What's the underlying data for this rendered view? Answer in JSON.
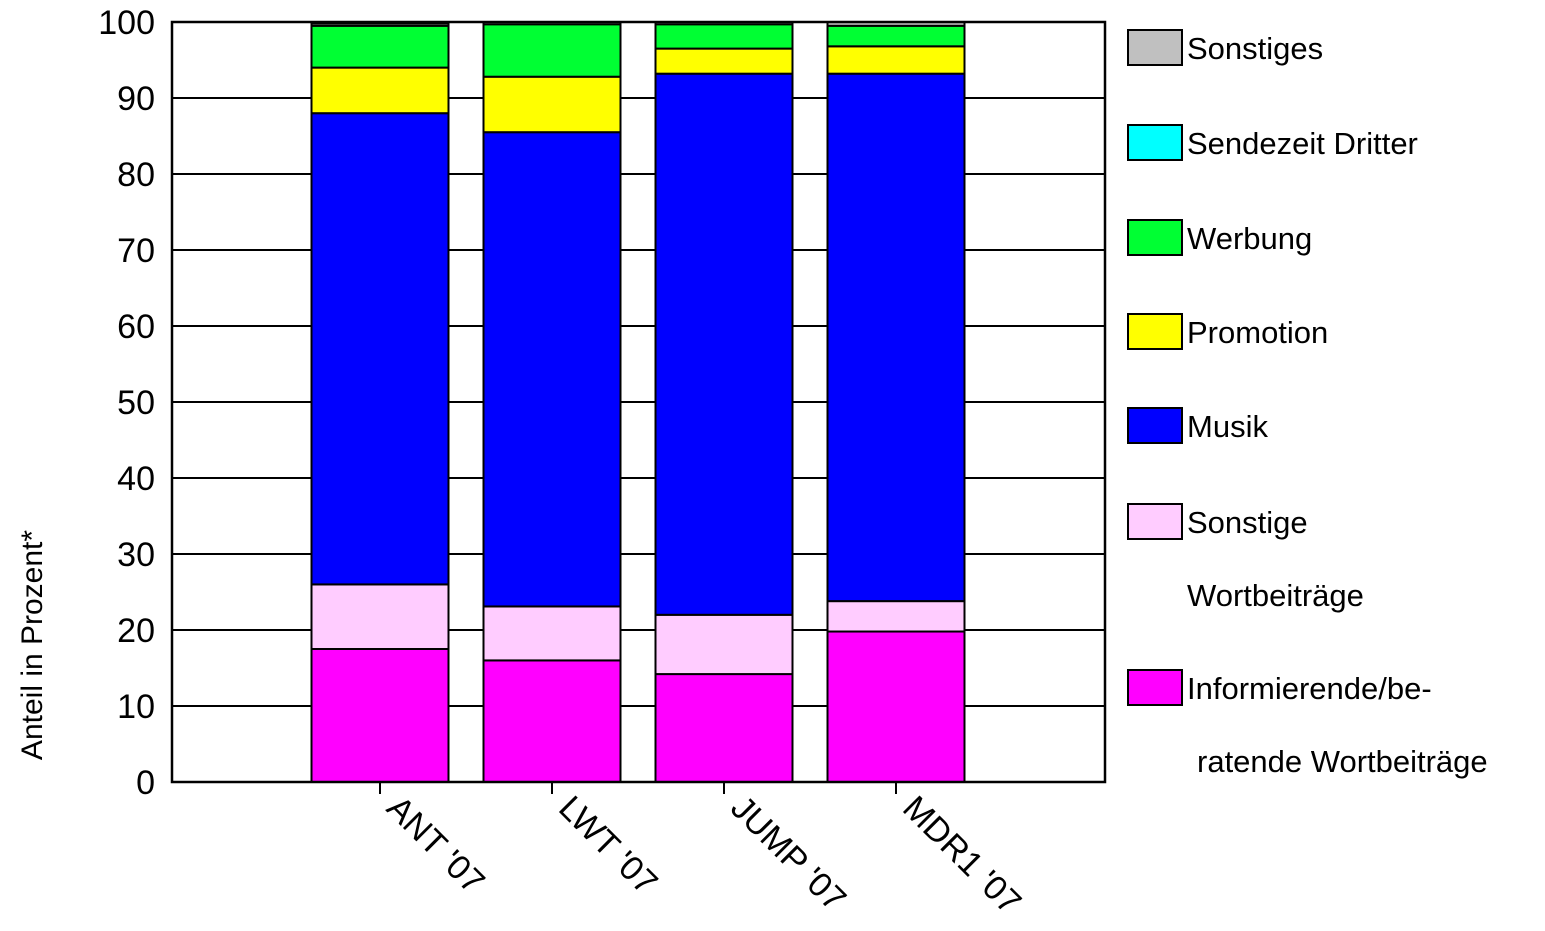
{
  "chart_data": {
    "type": "bar",
    "stacked": true,
    "title": "",
    "xlabel": "",
    "ylabel": "Anteil in Prozent*",
    "ylim": [
      0,
      100
    ],
    "yticks": [
      0,
      10,
      20,
      30,
      40,
      50,
      60,
      70,
      80,
      90,
      100
    ],
    "grid": true,
    "legend_position": "right",
    "categories": [
      "ANT '07",
      "LWT '07",
      "JUMP '07",
      "MDR1 '07"
    ],
    "series": [
      {
        "name": "Informierende/beratende Wortbeiträge",
        "legend_lines": [
          "Informierende/be-",
          "ratende Wortbeiträge"
        ],
        "color": "#ff00ff",
        "values": [
          17.5,
          16,
          14.2,
          19.8
        ]
      },
      {
        "name": "Sonstige Wortbeiträge",
        "legend_lines": [
          "Sonstige",
          "Wortbeiträge"
        ],
        "color": "#ffccff",
        "values": [
          8.5,
          7.1,
          7.8,
          4
        ]
      },
      {
        "name": "Musik",
        "legend_lines": [
          "Musik"
        ],
        "color": "#0000ff",
        "values": [
          62,
          62.4,
          71.2,
          69.4
        ]
      },
      {
        "name": "Promotion",
        "legend_lines": [
          "Promotion"
        ],
        "color": "#ffff00",
        "values": [
          6,
          7.3,
          3.3,
          3.6
        ]
      },
      {
        "name": "Werbung",
        "legend_lines": [
          "Werbung"
        ],
        "color": "#00ff33",
        "values": [
          5.5,
          6.9,
          3.2,
          2.7
        ]
      },
      {
        "name": "Sendezeit Dritter",
        "legend_lines": [
          "Sendezeit Dritter"
        ],
        "color": "#00ffff",
        "values": [
          0,
          0,
          0,
          0
        ]
      },
      {
        "name": "Sonstiges",
        "legend_lines": [
          "Sonstiges"
        ],
        "color": "#c0c0c0",
        "values": [
          0.3,
          0.3,
          0.3,
          0.5
        ]
      }
    ]
  }
}
